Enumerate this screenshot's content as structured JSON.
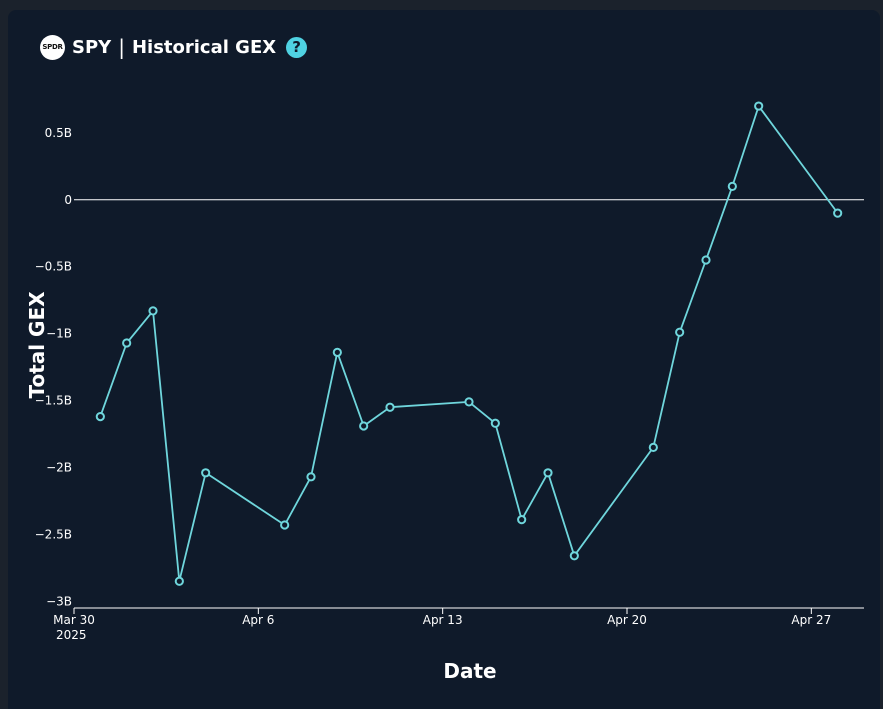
{
  "header": {
    "logo_text": "SPDR",
    "ticker": "SPY",
    "separator": "|",
    "chart_name": "Historical GEX",
    "help_icon": "question-circle-icon",
    "help_symbol": "?"
  },
  "colors": {
    "background": "#1b222c",
    "panel": "#0f1a2a",
    "line": "#6fd6dc",
    "accent": "#4fd2e2",
    "text": "#ffffff"
  },
  "chart_data": {
    "type": "line",
    "xlabel": "Date",
    "ylabel": "Total GEX",
    "x_ticks": [
      {
        "date": "2025-03-30",
        "label": "Mar 30",
        "sublabel": "2025"
      },
      {
        "date": "2025-04-06",
        "label": "Apr 6"
      },
      {
        "date": "2025-04-13",
        "label": "Apr 13"
      },
      {
        "date": "2025-04-20",
        "label": "Apr 20"
      },
      {
        "date": "2025-04-27",
        "label": "Apr 27"
      }
    ],
    "y_ticks": [
      {
        "value": 0.5,
        "label": "0.5B"
      },
      {
        "value": 0,
        "label": "0"
      },
      {
        "value": -0.5,
        "label": "−0.5B"
      },
      {
        "value": -1,
        "label": "−1B"
      },
      {
        "value": -1.5,
        "label": "−1.5B"
      },
      {
        "value": -2,
        "label": "−2B"
      },
      {
        "value": -2.5,
        "label": "−2.5B"
      },
      {
        "value": -3,
        "label": "−3B"
      }
    ],
    "xlim": [
      "2025-03-30",
      "2025-04-29"
    ],
    "ylim": [
      -3.05,
      0.82
    ],
    "unit": "B",
    "series": [
      {
        "points": [
          {
            "x": "2025-03-31",
            "y": -1.62
          },
          {
            "x": "2025-04-01",
            "y": -1.07
          },
          {
            "x": "2025-04-02",
            "y": -0.83
          },
          {
            "x": "2025-04-03",
            "y": -2.85
          },
          {
            "x": "2025-04-04",
            "y": -2.04
          },
          {
            "x": "2025-04-07",
            "y": -2.43
          },
          {
            "x": "2025-04-08",
            "y": -2.07
          },
          {
            "x": "2025-04-09",
            "y": -1.14
          },
          {
            "x": "2025-04-10",
            "y": -1.69
          },
          {
            "x": "2025-04-11",
            "y": -1.55
          },
          {
            "x": "2025-04-14",
            "y": -1.51
          },
          {
            "x": "2025-04-15",
            "y": -1.67
          },
          {
            "x": "2025-04-16",
            "y": -2.39
          },
          {
            "x": "2025-04-17",
            "y": -2.04
          },
          {
            "x": "2025-04-18",
            "y": -2.66
          },
          {
            "x": "2025-04-21",
            "y": -1.85
          },
          {
            "x": "2025-04-22",
            "y": -0.99
          },
          {
            "x": "2025-04-23",
            "y": -0.45
          },
          {
            "x": "2025-04-24",
            "y": 0.1
          },
          {
            "x": "2025-04-25",
            "y": 0.7
          },
          {
            "x": "2025-04-28",
            "y": -0.1
          }
        ]
      }
    ],
    "zero_line": true,
    "grid": false
  }
}
